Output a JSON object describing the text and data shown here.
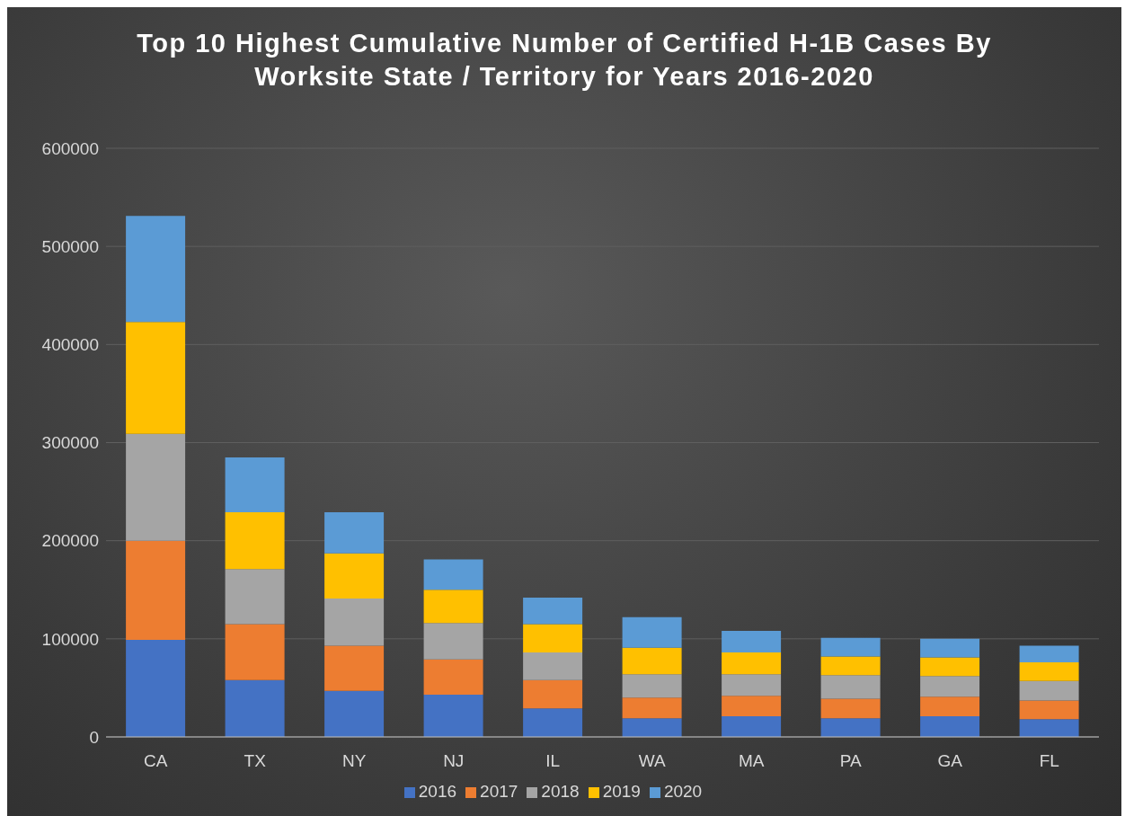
{
  "chart_data": {
    "type": "bar",
    "title": "Top 10 Highest Cumulative Number of Certified H-1B Cases By Worksite State / Territory for Years 2016-2020",
    "categories": [
      "CA",
      "TX",
      "NY",
      "NJ",
      "IL",
      "WA",
      "MA",
      "PA",
      "GA",
      "FL"
    ],
    "series": [
      {
        "name": "2016",
        "color": "#4472c4",
        "values": [
          99000,
          58000,
          47000,
          43000,
          29000,
          19000,
          21000,
          19000,
          21000,
          18000
        ]
      },
      {
        "name": "2017",
        "color": "#ed7d31",
        "values": [
          101000,
          57000,
          46000,
          36000,
          29000,
          21000,
          21000,
          20000,
          20000,
          19000
        ]
      },
      {
        "name": "2018",
        "color": "#a5a5a5",
        "values": [
          109000,
          56000,
          48000,
          37000,
          28000,
          24000,
          22000,
          24000,
          21000,
          20000
        ]
      },
      {
        "name": "2019",
        "color": "#ffc000",
        "values": [
          114000,
          58000,
          46000,
          34000,
          29000,
          27000,
          22000,
          19000,
          19000,
          19000
        ]
      },
      {
        "name": "2020",
        "color": "#5b9bd5",
        "values": [
          108000,
          56000,
          42000,
          31000,
          27000,
          31000,
          22000,
          19000,
          19000,
          17000
        ]
      }
    ],
    "stacked": true,
    "ylim": [
      0,
      600000
    ],
    "yticks": [
      0,
      100000,
      200000,
      300000,
      400000,
      500000,
      600000
    ],
    "grid": "y",
    "legend": "bottom"
  }
}
